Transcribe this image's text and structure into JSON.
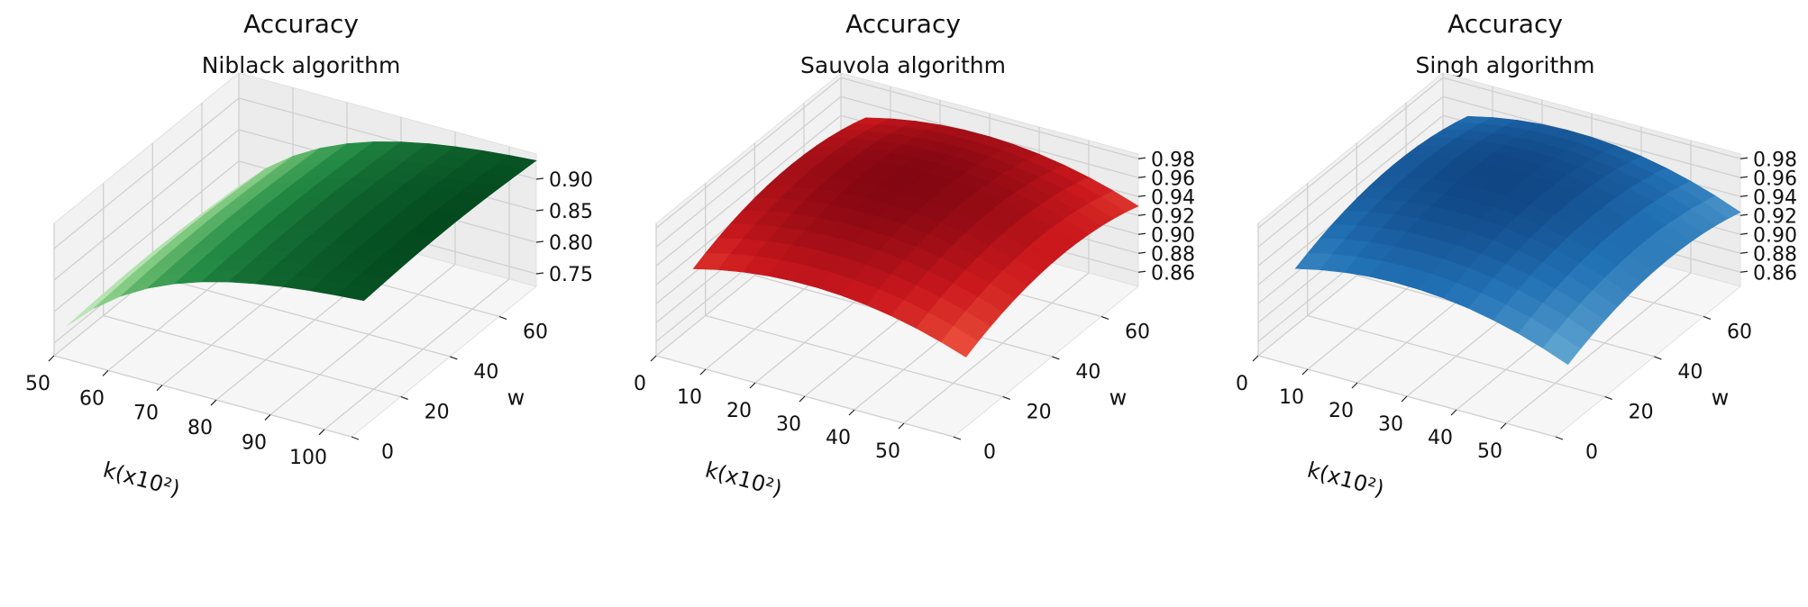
{
  "chart_data": [
    {
      "type": "surface",
      "title": "Accuracy",
      "subtitle": "Niblack algorithm",
      "xlabel": "k(x10²)",
      "ylabel": "w",
      "x_ticks": [
        "50",
        "60",
        "70",
        "80",
        "90",
        "100"
      ],
      "y_ticks": [
        "0",
        "20",
        "40",
        "60"
      ],
      "z_ticks": [
        "0.75",
        "0.80",
        "0.85",
        "0.90"
      ],
      "xlim": [
        50,
        105
      ],
      "ylim": [
        0,
        75
      ],
      "zlim": [
        0.73,
        0.94
      ],
      "colormap": "Greens",
      "k_values": [
        50,
        55,
        60,
        65,
        70,
        75,
        80,
        85,
        90,
        95,
        100,
        105
      ],
      "w_values": [
        5,
        10,
        15,
        20,
        25,
        30,
        35,
        40,
        45,
        50,
        55,
        60,
        65,
        70,
        75
      ],
      "model": "niblack"
    },
    {
      "type": "surface",
      "title": "Accuracy",
      "subtitle": "Sauvola algorithm",
      "xlabel": "k(x10²)",
      "ylabel": "w",
      "x_ticks": [
        "0",
        "10",
        "20",
        "30",
        "40",
        "50"
      ],
      "y_ticks": [
        "0",
        "20",
        "40",
        "60"
      ],
      "z_ticks": [
        "0.86",
        "0.88",
        "0.90",
        "0.92",
        "0.94",
        "0.96",
        "0.98"
      ],
      "xlim": [
        0,
        60
      ],
      "ylim": [
        0,
        75
      ],
      "zlim": [
        0.845,
        0.985
      ],
      "colormap": "Reds",
      "k_values": [
        5,
        10,
        15,
        20,
        25,
        30,
        35,
        40,
        45,
        50,
        55,
        60
      ],
      "w_values": [
        5,
        10,
        15,
        20,
        25,
        30,
        35,
        40,
        45,
        50,
        55,
        60,
        65,
        70,
        75
      ],
      "model": "sauvola"
    },
    {
      "type": "surface",
      "title": "Accuracy",
      "subtitle": "Singh algorithm",
      "xlabel": "k(x10²)",
      "ylabel": "w",
      "x_ticks": [
        "0",
        "10",
        "20",
        "30",
        "40",
        "50"
      ],
      "y_ticks": [
        "0",
        "20",
        "40",
        "60"
      ],
      "z_ticks": [
        "0.86",
        "0.88",
        "0.90",
        "0.92",
        "0.94",
        "0.96",
        "0.98"
      ],
      "xlim": [
        0,
        60
      ],
      "ylim": [
        0,
        75
      ],
      "zlim": [
        0.845,
        0.985
      ],
      "colormap": "Blues",
      "k_values": [
        5,
        10,
        15,
        20,
        25,
        30,
        35,
        40,
        45,
        50,
        55,
        60
      ],
      "w_values": [
        5,
        10,
        15,
        20,
        25,
        30,
        35,
        40,
        45,
        50,
        55,
        60,
        65,
        70,
        75
      ],
      "model": "singh"
    }
  ]
}
